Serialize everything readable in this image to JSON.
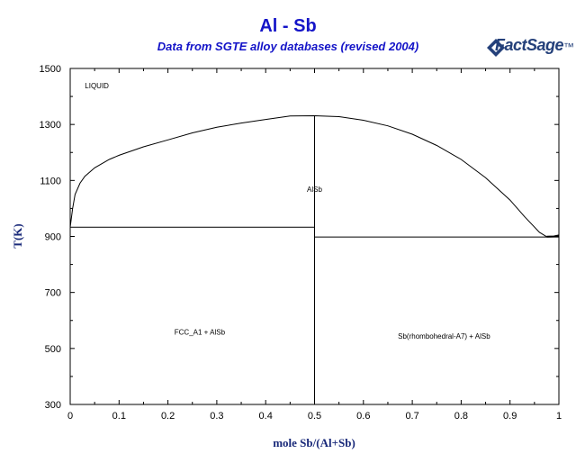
{
  "header": {
    "title": "Al - Sb",
    "subtitle": "Data from SGTE alloy databases (revised 2004)",
    "logo_text": "FactSage",
    "logo_tm": "™"
  },
  "chart_data": {
    "type": "line",
    "title": "Al - Sb",
    "subtitle": "Data from SGTE alloy databases (revised 2004)",
    "xlabel": "mole Sb/(Al+Sb)",
    "ylabel": "T(K)",
    "xlim": [
      0,
      1
    ],
    "ylim": [
      300,
      1500
    ],
    "x_ticks": [
      "0",
      "0.1",
      "0.2",
      "0.3",
      "0.4",
      "0.5",
      "0.6",
      "0.7",
      "0.8",
      "0.9",
      "1"
    ],
    "y_ticks": [
      "300",
      "500",
      "700",
      "900",
      "1100",
      "1300",
      "1500"
    ],
    "grid": false,
    "series": [
      {
        "kind": "liquidus",
        "x": [
          0.0,
          0.005,
          0.01,
          0.02,
          0.03,
          0.05,
          0.08,
          0.1,
          0.15,
          0.2,
          0.25,
          0.3,
          0.35,
          0.4,
          0.45,
          0.5,
          0.55,
          0.6,
          0.65,
          0.7,
          0.75,
          0.8,
          0.85,
          0.9,
          0.93,
          0.96,
          0.975
        ],
        "y": [
          933,
          1000,
          1050,
          1090,
          1115,
          1145,
          1175,
          1190,
          1220,
          1245,
          1270,
          1290,
          1305,
          1318,
          1330,
          1331,
          1328,
          1315,
          1295,
          1265,
          1225,
          1175,
          1110,
          1030,
          970,
          915,
          899
        ]
      },
      {
        "kind": "melting-point",
        "x": [
          0.975,
          0.99,
          1.0
        ],
        "y": [
          899,
          900,
          904
        ]
      },
      {
        "kind": "eutectic",
        "x": [
          0.0,
          0.5
        ],
        "y": [
          933,
          933
        ]
      },
      {
        "kind": "eutectic",
        "x": [
          0.5,
          1.0
        ],
        "y": [
          898,
          898
        ]
      },
      {
        "kind": "compound",
        "x": [
          0.5,
          0.5
        ],
        "y": [
          300,
          1331
        ]
      }
    ],
    "annotations": [
      {
        "text": "LIQUID",
        "x": 0.03,
        "y": 1430
      },
      {
        "text": "AlSb",
        "x": 0.5,
        "y": 1060
      },
      {
        "text": "FCC_A1 + AlSb",
        "x": 0.265,
        "y": 550
      },
      {
        "text": "Sb(rhombohedral-A7) + AlSb",
        "x": 0.765,
        "y": 535
      }
    ]
  }
}
